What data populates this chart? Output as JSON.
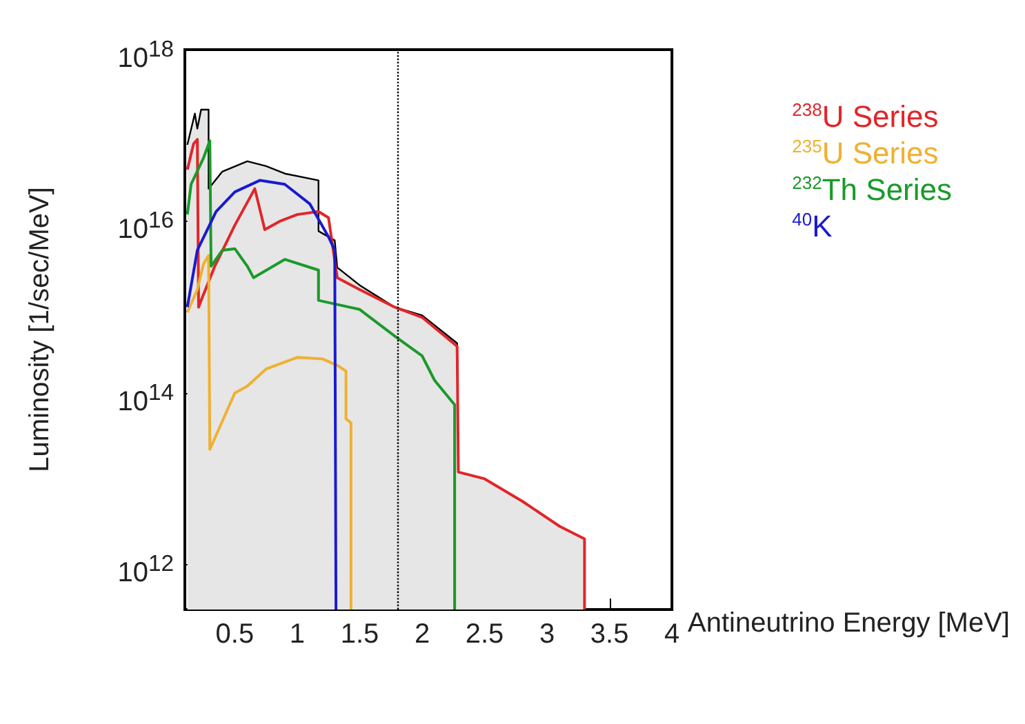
{
  "chart_data": {
    "type": "line",
    "xlabel": "Antineutrino Energy [MeV]",
    "ylabel": "Luminosity [1/sec/MeV]",
    "xlim": [
      0.1,
      4
    ],
    "xticks": [
      0.5,
      1,
      1.5,
      2,
      2.5,
      3,
      3.5,
      4
    ],
    "ylim": [
      300000000000.0,
      1e+18
    ],
    "log": true,
    "yticks": [
      {
        "value": 1000000000000.0,
        "label": "10$^{12}$"
      },
      {
        "value": 100000000000000.0,
        "label": "10$^{14}$"
      },
      {
        "value": 1e+16,
        "label": "10$^{16}$"
      },
      {
        "value": 1e+18,
        "label": "10$^{18}$"
      }
    ],
    "grid": false,
    "legend": "top right",
    "marker": "none",
    "ref_lines": [
      {
        "axis": "x",
        "value": 1.8,
        "color": "#000000",
        "line_style": "dotted"
      }
    ],
    "series": [
      {
        "type": "area",
        "color": "#000000",
        "x": [
          0.12,
          0.18,
          0.2,
          0.23,
          0.29,
          0.29,
          0.4,
          0.6,
          0.75,
          0.9,
          1.17,
          1.17,
          1.3,
          1.32,
          1.5,
          1.78,
          2.0,
          2.28,
          2.29,
          2.5,
          2.8,
          3.1,
          3.3,
          3.3
        ],
        "values": [
          7.8e+16,
          1.8e+17,
          1.2e+17,
          2e+17,
          2e+17,
          2.4e+16,
          3.8e+16,
          5e+16,
          4.4e+16,
          3.6e+16,
          3e+16,
          7700000000000000.0,
          6000000000000000.0,
          2900000000000000.0,
          1800000000000000.0,
          1000000000000000.0,
          800000000000000.0,
          380000000000000.0,
          12000000000000.0,
          10000000000000.0,
          5500000000000.0,
          2800000000000.0,
          2000000000000.0,
          300000000000.0
        ]
      },
      {
        "name": "$^{238}$U Series",
        "color": "#e0262a",
        "x": [
          0.12,
          0.17,
          0.2,
          0.21,
          0.24,
          0.34,
          0.5,
          0.66,
          0.74,
          0.86,
          1.0,
          1.17,
          1.25,
          1.32,
          1.5,
          1.78,
          2.0,
          2.28,
          2.29,
          2.5,
          2.8,
          3.1,
          3.3,
          3.3
        ],
        "values": [
          4e+16,
          8e+16,
          9e+16,
          1000000000000000.0,
          1300000000000000.0,
          3000000000000000.0,
          9000000000000000.0,
          2.4e+16,
          8000000000000000.0,
          1e+16,
          1.2e+16,
          1.3e+16,
          1.1e+16,
          2200000000000000.0,
          1600000000000000.0,
          1000000000000000.0,
          760000000000000.0,
          350000000000000.0,
          12000000000000.0,
          10000000000000.0,
          5500000000000.0,
          2800000000000.0,
          2000000000000.0,
          300000000000.0
        ]
      },
      {
        "name": "$^{235}$U Series",
        "color": "#f0b030",
        "x": [
          0.12,
          0.2,
          0.25,
          0.29,
          0.3,
          0.5,
          0.6,
          0.75,
          1.0,
          1.2,
          1.32,
          1.39,
          1.39,
          1.43,
          1.43
        ],
        "values": [
          870000000000000.0,
          1600000000000000.0,
          3200000000000000.0,
          4000000000000000.0,
          22000000000000.0,
          100000000000000.0,
          120000000000000.0,
          190000000000000.0,
          260000000000000.0,
          250000000000000.0,
          210000000000000.0,
          180000000000000.0,
          50000000000000.0,
          45000000000000.0,
          300000000000.0
        ]
      },
      {
        "name": "$^{232}$Th Series",
        "color": "#1a9a2a",
        "x": [
          0.12,
          0.15,
          0.25,
          0.3,
          0.31,
          0.4,
          0.5,
          0.6,
          0.65,
          0.9,
          1.17,
          1.17,
          1.5,
          1.78,
          2.0,
          2.1,
          2.26,
          2.26
        ],
        "values": [
          1.2e+16,
          2.7e+16,
          5.5e+16,
          8.7e+16,
          3000000000000000.0,
          4600000000000000.0,
          4800000000000000.0,
          3000000000000000.0,
          2200000000000000.0,
          3600000000000000.0,
          2700000000000000.0,
          1200000000000000.0,
          940000000000000.0,
          460000000000000.0,
          270000000000000.0,
          140000000000000.0,
          73000000000000.0,
          300000000000.0
        ]
      },
      {
        "name": "$^{40}$K",
        "color": "#1a1ad0",
        "x": [
          0.12,
          0.2,
          0.35,
          0.5,
          0.7,
          0.9,
          1.1,
          1.25,
          1.3,
          1.31
        ],
        "values": [
          1000000000000000.0,
          4600000000000000.0,
          1.3e+16,
          2.2e+16,
          3e+16,
          2.7e+16,
          1.6e+16,
          6600000000000000.0,
          4600000000000000.0,
          300000000000.0
        ]
      }
    ]
  }
}
